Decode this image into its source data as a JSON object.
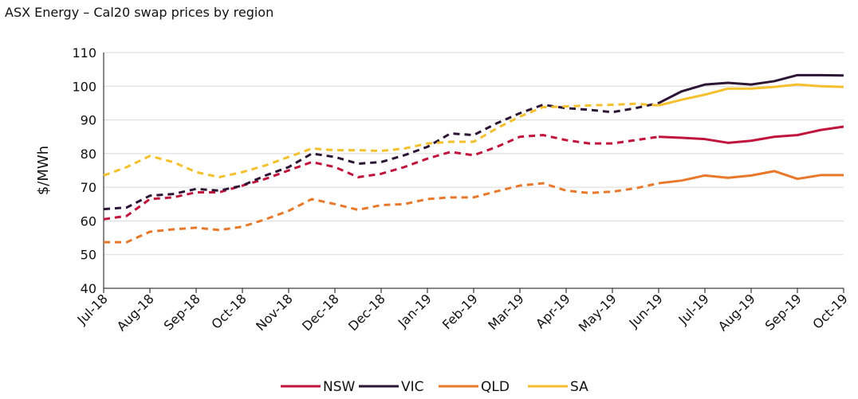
{
  "chart_data": {
    "type": "line",
    "title": "ASX Energy – Cal20 swap prices by region",
    "xlabel": "",
    "ylabel": "$/MWh",
    "ylim": [
      40,
      110
    ],
    "yticks": [
      40,
      50,
      60,
      70,
      80,
      90,
      100,
      110
    ],
    "x_tick_labels": [
      "Jul-18",
      "Aug-18",
      "Sep-18",
      "Oct-18",
      "Nov-18",
      "Dec-18",
      "Dec-18",
      "Jan-19",
      "Feb-19",
      "Mar-19",
      "Apr-19",
      "May-19",
      "Jun-19",
      "Jul-19",
      "Aug-19",
      "Sep-19",
      "Oct-19"
    ],
    "x_points": 33,
    "grid": "horizontal",
    "legend": "bottom",
    "line_style_note": "dashed through Jun-19, solid afterwards",
    "series": [
      {
        "name": "NSW",
        "color": "#C0143C",
        "values": [
          60.5,
          61.5,
          66.5,
          67,
          68.5,
          68.5,
          70.5,
          72.5,
          75,
          77.5,
          76,
          73,
          74,
          76,
          78.5,
          80.5,
          79.5,
          82,
          85,
          85.5,
          84,
          83,
          83,
          84,
          85,
          84.7,
          84.3,
          83.2,
          83.8,
          85,
          85.5,
          87,
          88
        ]
      },
      {
        "name": "VIC",
        "color": "#2D1536",
        "values": [
          63.5,
          64,
          67.5,
          68,
          69.5,
          69,
          70.5,
          73.5,
          76,
          80,
          79,
          77,
          77.5,
          79.5,
          82,
          86,
          85.5,
          89,
          92,
          94.5,
          93.5,
          93,
          92.3,
          93.5,
          95,
          98.5,
          100.5,
          101,
          100.5,
          101.5,
          103.3,
          103.3,
          103.2
        ]
      },
      {
        "name": "QLD",
        "color": "#E8782A",
        "values": [
          53.7,
          53.7,
          56.8,
          57.5,
          58,
          57.3,
          58.3,
          60.5,
          63,
          66.5,
          65,
          63.3,
          64.7,
          65,
          66.5,
          67,
          67,
          68.8,
          70.5,
          71.2,
          69,
          68.3,
          68.7,
          69.7,
          71.2,
          72,
          73.5,
          72.8,
          73.5,
          74.8,
          72.5,
          73.6,
          73.6
        ]
      },
      {
        "name": "SA",
        "color": "#F5C02E",
        "values": [
          73.5,
          76,
          79.3,
          77.5,
          74.5,
          73,
          74.5,
          76.5,
          79,
          81.5,
          81,
          81,
          80.8,
          81.5,
          83,
          83.5,
          83.5,
          87.5,
          91,
          93.8,
          94,
          94.3,
          94.5,
          94.8,
          94.3,
          96,
          97.5,
          99.3,
          99.3,
          99.8,
          100.5,
          100,
          99.8
        ]
      }
    ]
  }
}
